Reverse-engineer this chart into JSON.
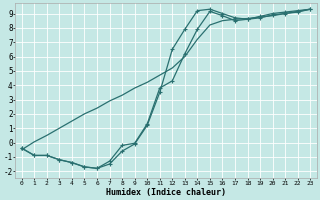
{
  "xlabel": "Humidex (Indice chaleur)",
  "bg_color": "#c5e8e5",
  "grid_color": "#ffffff",
  "line_color": "#2a7070",
  "xlim": [
    -0.5,
    23.5
  ],
  "ylim": [
    -2.5,
    9.7
  ],
  "xticks": [
    0,
    1,
    2,
    3,
    4,
    5,
    6,
    7,
    8,
    9,
    10,
    11,
    12,
    13,
    14,
    15,
    16,
    17,
    18,
    19,
    20,
    21,
    22,
    23
  ],
  "yticks": [
    -2,
    -1,
    0,
    1,
    2,
    3,
    4,
    5,
    6,
    7,
    8,
    9
  ],
  "curve1_x": [
    0,
    1,
    2,
    3,
    4,
    5,
    6,
    7,
    8,
    9,
    10,
    11,
    12,
    13,
    14,
    15,
    16,
    17,
    18,
    19,
    20,
    21,
    22,
    23
  ],
  "curve1_y": [
    -0.4,
    -0.9,
    -0.9,
    -1.2,
    -1.4,
    -1.7,
    -1.8,
    -1.5,
    -0.6,
    -0.1,
    1.2,
    3.5,
    6.5,
    7.9,
    9.2,
    9.3,
    9.0,
    8.7,
    8.6,
    8.8,
    9.0,
    9.1,
    9.2,
    9.3
  ],
  "curve2_x": [
    0,
    1,
    2,
    3,
    4,
    5,
    6,
    7,
    8,
    9,
    10,
    11,
    12,
    13,
    14,
    15,
    16,
    17,
    18,
    19,
    20,
    21,
    22,
    23
  ],
  "curve2_y": [
    -0.4,
    -0.9,
    -0.9,
    -1.2,
    -1.4,
    -1.7,
    -1.8,
    -1.3,
    -0.2,
    -0.05,
    1.3,
    3.8,
    4.3,
    6.2,
    7.9,
    9.15,
    8.85,
    8.5,
    8.6,
    8.7,
    8.9,
    9.0,
    9.1,
    9.3
  ],
  "curve3_x": [
    0,
    1,
    2,
    3,
    4,
    5,
    6,
    7,
    8,
    9,
    10,
    11,
    12,
    13,
    14,
    15,
    16,
    17,
    18,
    19,
    20,
    21,
    22,
    23
  ],
  "curve3_y": [
    -0.5,
    0.05,
    0.5,
    1.0,
    1.5,
    2.0,
    2.4,
    2.9,
    3.3,
    3.8,
    4.2,
    4.7,
    5.2,
    6.0,
    7.2,
    8.2,
    8.5,
    8.6,
    8.65,
    8.75,
    8.85,
    9.0,
    9.15,
    9.3
  ]
}
